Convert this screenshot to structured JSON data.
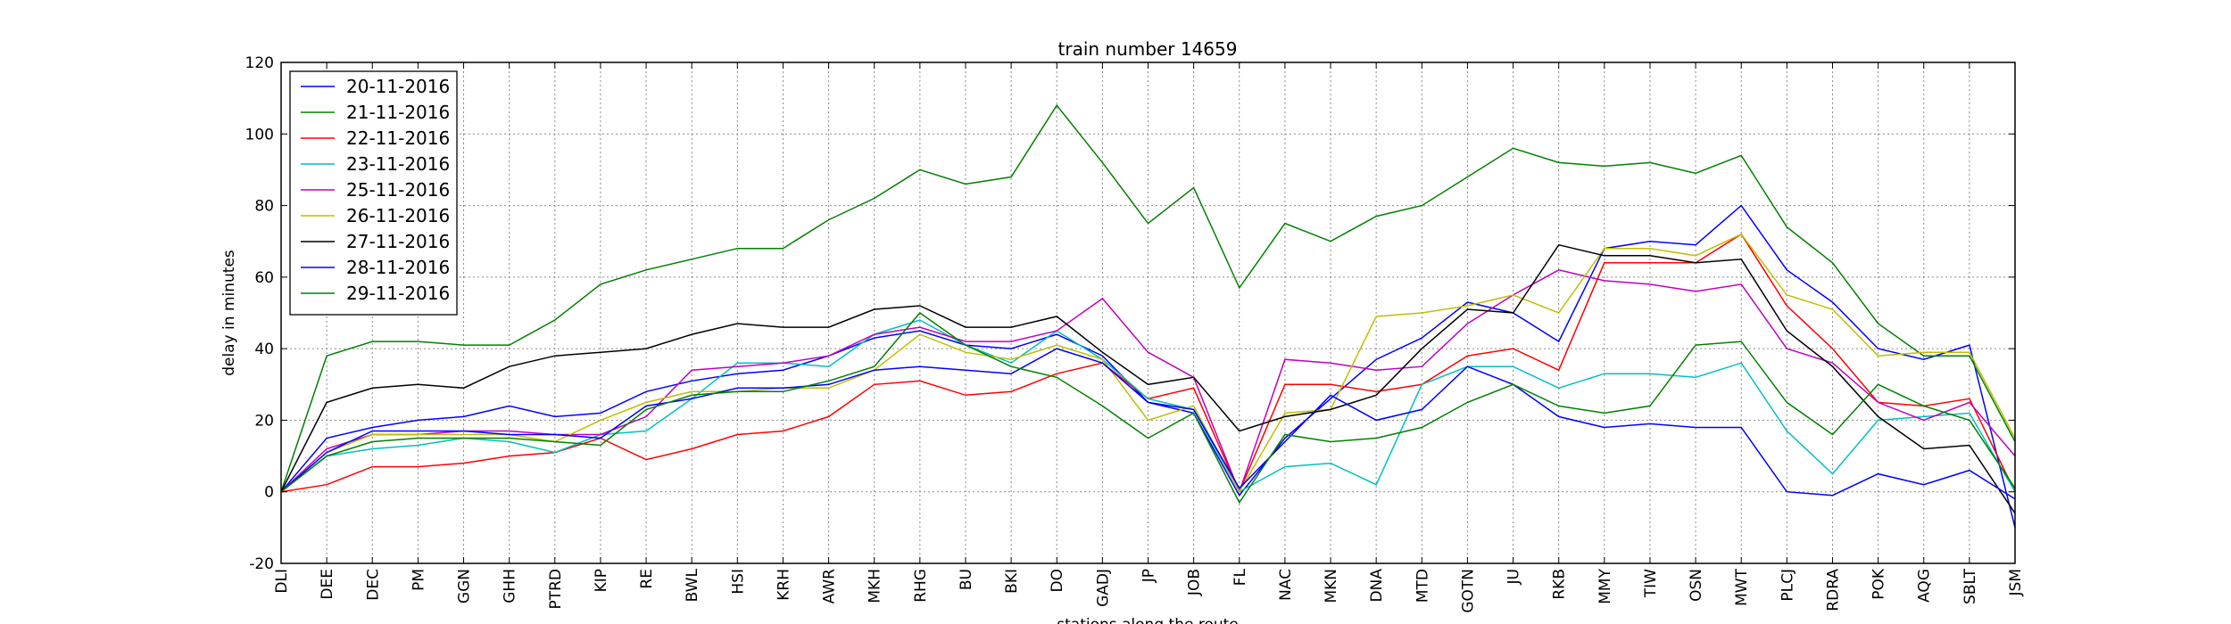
{
  "chart_data": {
    "type": "line",
    "title": "train number 14659",
    "xlabel": "stations along the route",
    "ylabel": "delay in minutes",
    "ylim": [
      -20,
      120
    ],
    "yticks": [
      -20,
      0,
      20,
      40,
      60,
      80,
      100,
      120
    ],
    "grid": true,
    "legend_position": "top-left",
    "categories": [
      "DLI",
      "DEE",
      "DEC",
      "PM",
      "GGN",
      "GHH",
      "PTRD",
      "KIP",
      "RE",
      "BWL",
      "HSI",
      "KRH",
      "AWR",
      "MKH",
      "RHG",
      "BU",
      "BKI",
      "DO",
      "GADJ",
      "JP",
      "JOB",
      "FL",
      "NAC",
      "MKN",
      "DNA",
      "MTD",
      "GOTN",
      "JU",
      "RKB",
      "MMY",
      "TIW",
      "OSN",
      "MWT",
      "PLCJ",
      "RDRA",
      "POK",
      "AQG",
      "SBLT",
      "JSM"
    ],
    "series": [
      {
        "name": "20-11-2016",
        "color": "#0000ff",
        "values": [
          0,
          15,
          18,
          20,
          21,
          24,
          21,
          22,
          28,
          31,
          33,
          34,
          38,
          43,
          45,
          41,
          40,
          44,
          38,
          25,
          22,
          -1,
          15,
          26,
          37,
          43,
          53,
          50,
          42,
          68,
          70,
          69,
          80,
          62,
          53,
          40,
          37,
          41,
          -10
        ]
      },
      {
        "name": "21-11-2016",
        "color": "#008000",
        "values": [
          0,
          38,
          42,
          42,
          41,
          41,
          48,
          58,
          62,
          65,
          68,
          68,
          76,
          82,
          90,
          86,
          88,
          108,
          92,
          75,
          85,
          57,
          75,
          70,
          77,
          80,
          88,
          96,
          92,
          91,
          92,
          89,
          94,
          74,
          64,
          47,
          38,
          38,
          14
        ]
      },
      {
        "name": "22-11-2016",
        "color": "#ff0000",
        "values": [
          0,
          2,
          7,
          7,
          8,
          10,
          11,
          15,
          9,
          12,
          16,
          17,
          21,
          30,
          31,
          27,
          28,
          33,
          36,
          26,
          29,
          0,
          30,
          30,
          28,
          30,
          38,
          40,
          34,
          64,
          64,
          64,
          72,
          52,
          40,
          25,
          24,
          26,
          0
        ]
      },
      {
        "name": "23-11-2016",
        "color": "#00bfbf",
        "values": [
          0,
          10,
          12,
          13,
          15,
          14,
          11,
          16,
          17,
          26,
          36,
          36,
          35,
          44,
          48,
          41,
          36,
          45,
          37,
          26,
          23,
          0,
          7,
          8,
          2,
          30,
          35,
          35,
          29,
          33,
          33,
          32,
          36,
          17,
          5,
          20,
          21,
          22,
          0
        ]
      },
      {
        "name": "25-11-2016",
        "color": "#bf00bf",
        "values": [
          0,
          12,
          16,
          16,
          17,
          17,
          16,
          16,
          21,
          34,
          35,
          36,
          38,
          44,
          46,
          42,
          42,
          45,
          54,
          39,
          32,
          0,
          37,
          36,
          34,
          35,
          47,
          55,
          62,
          59,
          58,
          56,
          58,
          40,
          36,
          25,
          20,
          25,
          10
        ]
      },
      {
        "name": "26-11-2016",
        "color": "#bfbf00",
        "values": [
          0,
          11,
          16,
          16,
          16,
          16,
          14,
          20,
          25,
          28,
          28,
          29,
          29,
          34,
          44,
          39,
          37,
          41,
          37,
          20,
          24,
          0,
          22,
          23,
          49,
          50,
          52,
          55,
          50,
          68,
          68,
          66,
          72,
          55,
          51,
          38,
          39,
          39,
          15
        ]
      },
      {
        "name": "27-11-2016",
        "color": "#000000",
        "values": [
          0,
          25,
          29,
          30,
          29,
          35,
          38,
          39,
          40,
          44,
          47,
          46,
          46,
          51,
          52,
          46,
          46,
          49,
          39,
          30,
          32,
          17,
          21,
          23,
          27,
          40,
          51,
          50,
          69,
          66,
          66,
          64,
          65,
          45,
          35,
          21,
          12,
          13,
          -6
        ]
      },
      {
        "name": "28-11-2016",
        "color": "#0000ff",
        "values": [
          0,
          11,
          17,
          17,
          17,
          16,
          16,
          15,
          24,
          26,
          29,
          29,
          30,
          34,
          35,
          34,
          33,
          40,
          36,
          25,
          23,
          1,
          14,
          27,
          20,
          23,
          35,
          30,
          21,
          18,
          19,
          18,
          18,
          0,
          -1,
          5,
          2,
          6,
          -2
        ]
      },
      {
        "name": "29-11-2016",
        "color": "#008000",
        "values": [
          0,
          10,
          14,
          15,
          15,
          15,
          14,
          13,
          23,
          27,
          28,
          28,
          31,
          35,
          50,
          41,
          35,
          32,
          24,
          15,
          22,
          -3,
          16,
          14,
          15,
          18,
          25,
          30,
          24,
          22,
          24,
          41,
          42,
          25,
          16,
          30,
          24,
          20,
          1
        ]
      }
    ]
  }
}
